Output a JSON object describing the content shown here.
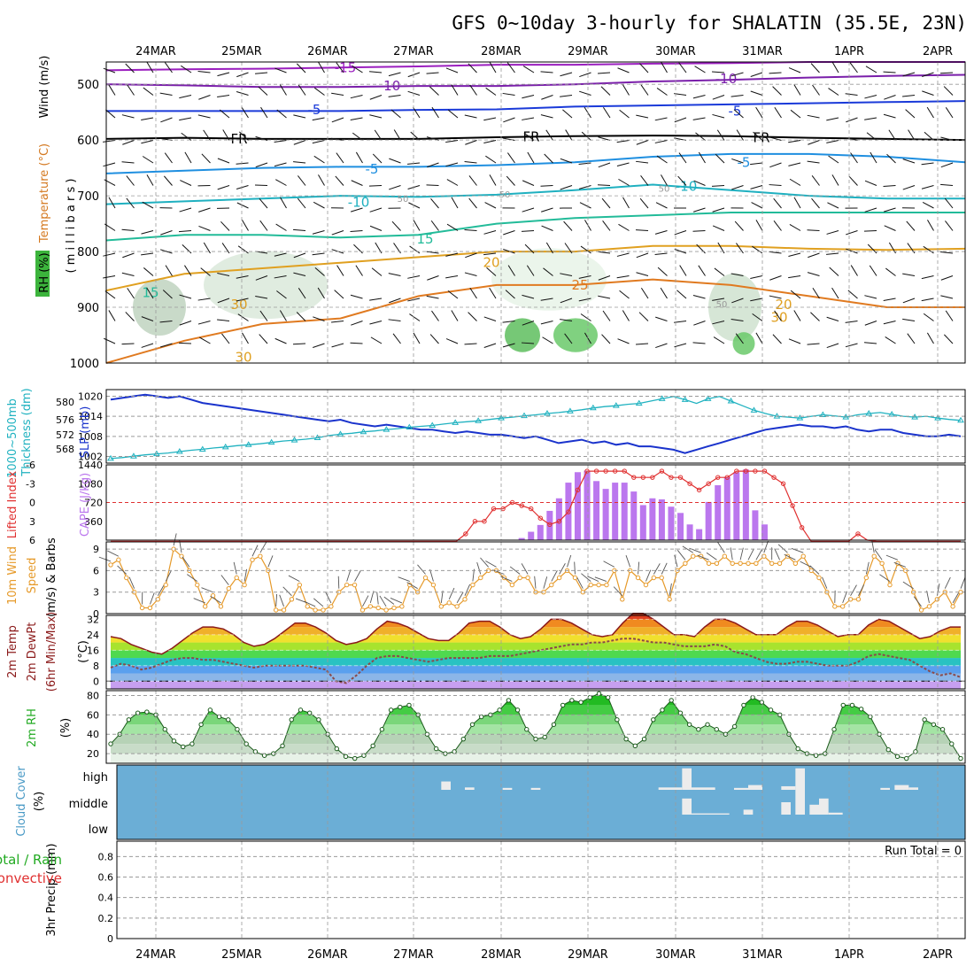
{
  "title": "GFS 0~10day 3-hourly for SHALATIN (35.5E, 23N)",
  "dates": [
    "24MAR",
    "25MAR",
    "26MAR",
    "27MAR",
    "28MAR",
    "29MAR",
    "30MAR",
    "31MAR",
    "1APR",
    "2APR"
  ],
  "colors": {
    "bg": "#ffffff",
    "grid": "#9a9a9a",
    "cloud_bg": "#6baed6",
    "cloud": "#ececec",
    "rh_green": "#22cc22",
    "slp": "#1a33cc",
    "thick": "#20b2c0",
    "li": "#e03030",
    "cape": "#bb77ee",
    "wind": "#e69a2a",
    "t2": "#8b1a1a"
  },
  "chart_data": [
    {
      "type": "heatmap",
      "name": "upper",
      "ylabel_left": [
        "Temperature",
        "(°C)",
        "Wind",
        "(m/s)"
      ],
      "ylabel_rh": "RH (%)",
      "ylabel_units": "( m i l l i b a r s )",
      "yticks": [
        500,
        600,
        700,
        800,
        900,
        1000
      ],
      "ylim": [
        1000,
        460
      ],
      "contour_labels": [
        "-15",
        "-10",
        "-10",
        "-5",
        "-5",
        "FR",
        "FR",
        "FR",
        "-5",
        "-5",
        "-10",
        "-10",
        "15",
        "15",
        "-15",
        "20",
        "20",
        "25",
        "30",
        "30",
        "30",
        "50",
        "50",
        "50",
        "50"
      ],
      "isotherms": [
        {
          "label": "-15",
          "color": "#9b1fbf",
          "y": [
            475,
            473,
            472,
            470,
            468,
            465,
            465,
            463,
            462,
            460,
            460,
            460
          ]
        },
        {
          "label": "-10",
          "color": "#7a1faa",
          "y": [
            500,
            502,
            505,
            505,
            503,
            503,
            500,
            495,
            492,
            488,
            485,
            483
          ]
        },
        {
          "label": "-5",
          "color": "#1a3ad9",
          "y": [
            548,
            548,
            548,
            548,
            546,
            545,
            540,
            538,
            536,
            534,
            532,
            530
          ]
        },
        {
          "label": "FR",
          "color": "#000000",
          "y": [
            598,
            596,
            598,
            598,
            598,
            595,
            593,
            592,
            593,
            596,
            598,
            600
          ]
        },
        {
          "label": "-5",
          "color": "#1f8fe0",
          "y": [
            660,
            655,
            650,
            648,
            648,
            645,
            640,
            630,
            625,
            625,
            630,
            640
          ]
        },
        {
          "label": "-10",
          "color": "#1fb0c0",
          "y": [
            715,
            710,
            705,
            700,
            702,
            698,
            690,
            680,
            690,
            700,
            705,
            705
          ]
        },
        {
          "label": "15",
          "color": "#22bb99",
          "y": [
            780,
            770,
            770,
            775,
            770,
            750,
            740,
            735,
            730,
            730,
            730,
            730
          ]
        },
        {
          "label": "20",
          "color": "#e0a020",
          "y": [
            870,
            840,
            830,
            820,
            810,
            800,
            800,
            790,
            790,
            795,
            797,
            795
          ]
        },
        {
          "label": "25",
          "color": "#e07a20",
          "y": [
            1000,
            960,
            930,
            920,
            880,
            860,
            860,
            850,
            860,
            880,
            900,
            900
          ]
        }
      ]
    },
    {
      "type": "line",
      "name": "slp_thickness",
      "ylabel": [
        "1000~500mb",
        "Thickness (dm)",
        "SLP (mb)"
      ],
      "left_ticks": [
        568,
        572,
        576,
        580
      ],
      "right_ticks": [
        1002,
        1008,
        1014,
        1020
      ],
      "series": [
        {
          "name": "SLP (mb)",
          "values": [
            1019,
            1019.5,
            1020,
            1020.5,
            1020,
            1019.5,
            1020,
            1019,
            1018,
            1017.5,
            1017,
            1016.5,
            1016,
            1015.5,
            1015,
            1014.5,
            1014,
            1013.5,
            1013,
            1012.5,
            1013,
            1012,
            1011.5,
            1011,
            1011.5,
            1011,
            1010.5,
            1010,
            1010,
            1009.5,
            1009,
            1009.5,
            1009,
            1008.5,
            1008.5,
            1008,
            1007.5,
            1008,
            1007,
            1006,
            1006.5,
            1007,
            1006,
            1006.5,
            1005.5,
            1006,
            1005,
            1005,
            1004.5,
            1004,
            1003,
            1004,
            1005,
            1006,
            1007,
            1008,
            1009,
            1010,
            1010.5,
            1011,
            1011.5,
            1011,
            1011,
            1010.5,
            1011,
            1010,
            1009.5,
            1010,
            1010,
            1009,
            1008.5,
            1008,
            1008,
            1008.5,
            1008
          ]
        },
        {
          "name": "1000~500mb Thickness (dm)",
          "values": [
            567,
            567.2,
            567.5,
            567.8,
            568,
            568.2,
            568.5,
            568.8,
            569,
            569.3,
            569.5,
            569.8,
            570,
            570.2,
            570.5,
            570.8,
            571,
            571.2,
            571.5,
            572,
            572.3,
            572.5,
            572.8,
            573,
            573.3,
            573.5,
            573.8,
            574,
            574.2,
            574.5,
            574.8,
            575,
            575.2,
            575.5,
            575.8,
            576,
            576.3,
            576.5,
            576.8,
            577,
            577.3,
            577.6,
            578,
            578.3,
            578.5,
            578.8,
            579,
            579.5,
            580,
            580.5,
            579.8,
            579,
            580,
            580.5,
            579.5,
            578.5,
            577.5,
            576.8,
            576.2,
            576,
            575.8,
            576.2,
            576.5,
            576.3,
            576,
            576.5,
            576.8,
            577,
            576.6,
            576.2,
            576,
            576.2,
            575.8,
            575.5,
            575.3
          ]
        }
      ]
    },
    {
      "type": "bar",
      "name": "cape_li",
      "ylabel": [
        "Lifted Index",
        "CAPE (J/kg)"
      ],
      "li_ticks": [
        "-6",
        "-3",
        "0",
        "3",
        "6"
      ],
      "cape_ticks": [
        "360",
        "720",
        "1080",
        "1440"
      ],
      "cape_values": [
        0,
        0,
        0,
        0,
        0,
        0,
        0,
        0,
        0,
        0,
        0,
        0,
        0,
        0,
        0,
        0,
        0,
        0,
        0,
        0,
        0,
        0,
        0,
        0,
        0,
        0,
        0,
        0,
        0,
        0,
        0,
        0,
        0,
        0,
        0,
        0,
        0,
        0,
        0,
        0,
        0,
        0,
        0,
        0,
        40,
        160,
        290,
        560,
        800,
        1100,
        1300,
        1330,
        1130,
        980,
        1100,
        1100,
        930,
        670,
        800,
        780,
        640,
        520,
        300,
        210,
        730,
        1050,
        1210,
        1300,
        1350,
        570,
        300,
        0,
        0,
        0,
        0,
        0,
        0,
        0,
        0,
        0,
        0,
        0,
        0,
        0,
        0,
        0,
        0,
        0,
        0,
        0,
        0,
        0
      ],
      "li_values": [
        8,
        8,
        8,
        8,
        8,
        8,
        8,
        7.5,
        8,
        8,
        8,
        8,
        6.5,
        8,
        8,
        8,
        8,
        8,
        7,
        7.5,
        8,
        8,
        7,
        8,
        8,
        8,
        7.5,
        8,
        8,
        8,
        7.5,
        8,
        8,
        8,
        8,
        7,
        7,
        7.5,
        5,
        3,
        3,
        1,
        1,
        0,
        0.5,
        1,
        2.5,
        3.5,
        3,
        1.5,
        -2,
        -5,
        -5,
        -5,
        -5,
        -5,
        -4,
        -4,
        -4,
        -5,
        -4,
        -4,
        -3,
        -2,
        -3,
        -4,
        -4,
        -5,
        -5,
        -5,
        -5,
        -4,
        -3,
        0.5,
        4,
        8,
        8,
        8,
        8,
        8,
        5,
        6,
        7,
        8,
        8,
        8,
        8,
        8,
        8,
        8,
        8,
        8
      ]
    },
    {
      "type": "line",
      "name": "wind10",
      "ylabel": [
        "10m Wind",
        "Speed",
        "(m/s)",
        "& Barbs"
      ],
      "yticks": [
        "0",
        "3",
        "6",
        "9"
      ],
      "values": [
        6.8,
        7.5,
        5,
        3,
        0.8,
        0.8,
        2,
        4,
        9,
        8,
        6,
        4,
        1,
        2.5,
        1,
        3.5,
        5,
        4,
        7.5,
        8,
        6,
        0.5,
        0.5,
        2,
        4,
        1,
        0.5,
        0.5,
        1,
        3,
        4,
        4,
        0.5,
        1,
        0.8,
        0.5,
        0.8,
        1,
        4,
        3,
        5,
        4,
        1,
        1.5,
        1,
        2,
        4,
        5,
        6,
        6,
        5,
        4,
        5,
        5,
        3,
        3,
        4,
        5,
        6,
        5,
        3,
        4,
        4,
        4,
        6,
        2,
        6,
        5,
        4,
        5,
        5,
        2,
        6,
        7,
        8,
        8,
        7,
        7,
        8,
        7,
        7,
        7,
        7,
        8,
        7,
        7,
        8,
        7,
        8,
        6,
        5,
        3,
        1,
        1,
        2,
        2,
        5,
        8,
        7,
        4,
        7,
        6,
        3,
        0.5,
        1,
        2,
        3,
        1,
        3
      ]
    },
    {
      "type": "area",
      "name": "temp",
      "ylabel": [
        "2m Temp",
        "2m DewPt",
        "(6hr Min/Max)",
        "(°C)"
      ],
      "yticks": [
        "0",
        "8",
        "16",
        "24",
        "32"
      ],
      "temp": [
        23,
        22,
        19,
        17,
        15,
        14,
        17,
        21,
        25,
        28,
        28,
        27,
        24,
        20,
        18,
        19,
        22,
        26,
        30,
        30,
        28,
        25,
        21,
        19,
        20,
        22,
        27,
        31,
        30,
        28,
        25,
        22,
        21,
        21,
        25,
        30,
        31,
        31,
        28,
        24,
        22,
        23,
        27,
        32,
        32,
        30,
        27,
        24,
        23,
        24,
        30,
        35,
        35,
        32,
        28,
        24,
        24,
        23,
        28,
        32,
        32,
        30,
        27,
        24,
        24,
        24,
        28,
        31,
        31,
        29,
        26,
        23,
        24,
        24,
        29,
        32,
        31,
        28,
        25,
        22,
        23,
        26,
        28,
        28
      ],
      "dew": [
        7,
        9,
        8,
        6,
        7,
        9,
        11,
        12,
        12,
        11,
        11,
        10,
        9,
        8,
        7,
        8,
        8,
        8,
        8,
        8,
        7,
        6,
        0,
        -1,
        3,
        8,
        12,
        13,
        13,
        12,
        11,
        10,
        11,
        12,
        12,
        12,
        12,
        13,
        13,
        13,
        14,
        15,
        16,
        17,
        18,
        19,
        19,
        20,
        20,
        21,
        22,
        22,
        21,
        20,
        20,
        19,
        18,
        18,
        18,
        19,
        18,
        15,
        14,
        12,
        10,
        9,
        9,
        10,
        10,
        9,
        8,
        8,
        8,
        10,
        13,
        14,
        13,
        12,
        11,
        8,
        5,
        3,
        4,
        2
      ]
    },
    {
      "type": "area",
      "name": "rh",
      "ylabel": [
        "2m RH",
        "(%)"
      ],
      "yticks": [
        "20",
        "40",
        "60",
        "80"
      ],
      "values": [
        30,
        40,
        55,
        62,
        63,
        60,
        45,
        33,
        27,
        30,
        50,
        65,
        58,
        55,
        45,
        30,
        22,
        18,
        20,
        28,
        55,
        65,
        62,
        55,
        40,
        25,
        17,
        15,
        18,
        28,
        45,
        65,
        68,
        70,
        60,
        40,
        25,
        20,
        22,
        35,
        50,
        58,
        60,
        65,
        75,
        65,
        45,
        35,
        37,
        50,
        70,
        75,
        73,
        78,
        82,
        78,
        55,
        35,
        28,
        35,
        55,
        65,
        75,
        62,
        50,
        45,
        50,
        45,
        40,
        48,
        70,
        78,
        73,
        65,
        60,
        40,
        25,
        20,
        18,
        20,
        45,
        70,
        70,
        66,
        58,
        40,
        24,
        17,
        15,
        22,
        55,
        50,
        45,
        30,
        15
      ]
    },
    {
      "type": "table",
      "name": "cloud_cover",
      "ylabel": [
        "Cloud Cover",
        "(%)"
      ],
      "levels": [
        "high",
        "middle",
        "low"
      ],
      "blocks": [
        {
          "level": "high",
          "from": 35.5,
          "to": 36.5,
          "cover": 0.35
        },
        {
          "level": "high",
          "from": 38,
          "to": 39,
          "cover": 0.1
        },
        {
          "level": "high",
          "from": 42,
          "to": 43,
          "cover": 0.08
        },
        {
          "level": "high",
          "from": 45,
          "to": 46,
          "cover": 0.08
        },
        {
          "level": "high",
          "from": 58.5,
          "to": 61,
          "cover": 0.1
        },
        {
          "level": "high",
          "from": 61,
          "to": 62,
          "cover": 0.9
        },
        {
          "level": "high",
          "from": 62,
          "to": 64.5,
          "cover": 0.1
        },
        {
          "level": "high",
          "from": 66.5,
          "to": 68,
          "cover": 0.08
        },
        {
          "level": "high",
          "from": 68,
          "to": 69.5,
          "cover": 0.2
        },
        {
          "level": "high",
          "from": 71.5,
          "to": 73,
          "cover": 0.15
        },
        {
          "level": "high",
          "from": 73,
          "to": 74,
          "cover": 0.9
        },
        {
          "level": "high",
          "from": 82,
          "to": 83,
          "cover": 0.08
        },
        {
          "level": "high",
          "from": 83.5,
          "to": 85,
          "cover": 0.2
        },
        {
          "level": "high",
          "from": 85,
          "to": 86,
          "cover": 0.1
        },
        {
          "level": "middle",
          "from": 61,
          "to": 62,
          "cover": 0.65
        },
        {
          "level": "middle",
          "from": 62,
          "to": 66,
          "cover": 0.05
        },
        {
          "level": "middle",
          "from": 67.5,
          "to": 68.5,
          "cover": 0.2
        },
        {
          "level": "middle",
          "from": 71.5,
          "to": 72.5,
          "cover": 0.5
        },
        {
          "level": "middle",
          "from": 73,
          "to": 74,
          "cover": 1
        },
        {
          "level": "middle",
          "from": 74.5,
          "to": 75.5,
          "cover": 0.4
        },
        {
          "level": "middle",
          "from": 75.5,
          "to": 76.5,
          "cover": 0.65
        },
        {
          "level": "middle",
          "from": 76.5,
          "to": 78,
          "cover": 0.08
        }
      ]
    },
    {
      "type": "bar",
      "name": "precip",
      "ylabel": [
        "3hr Precip (mm)"
      ],
      "legend": [
        "Total / Rain",
        "Convective"
      ],
      "yticks": [
        "0",
        "0.2",
        "0.4",
        "0.6",
        "0.8"
      ],
      "run_total": "Run Total = 0",
      "values": []
    }
  ]
}
